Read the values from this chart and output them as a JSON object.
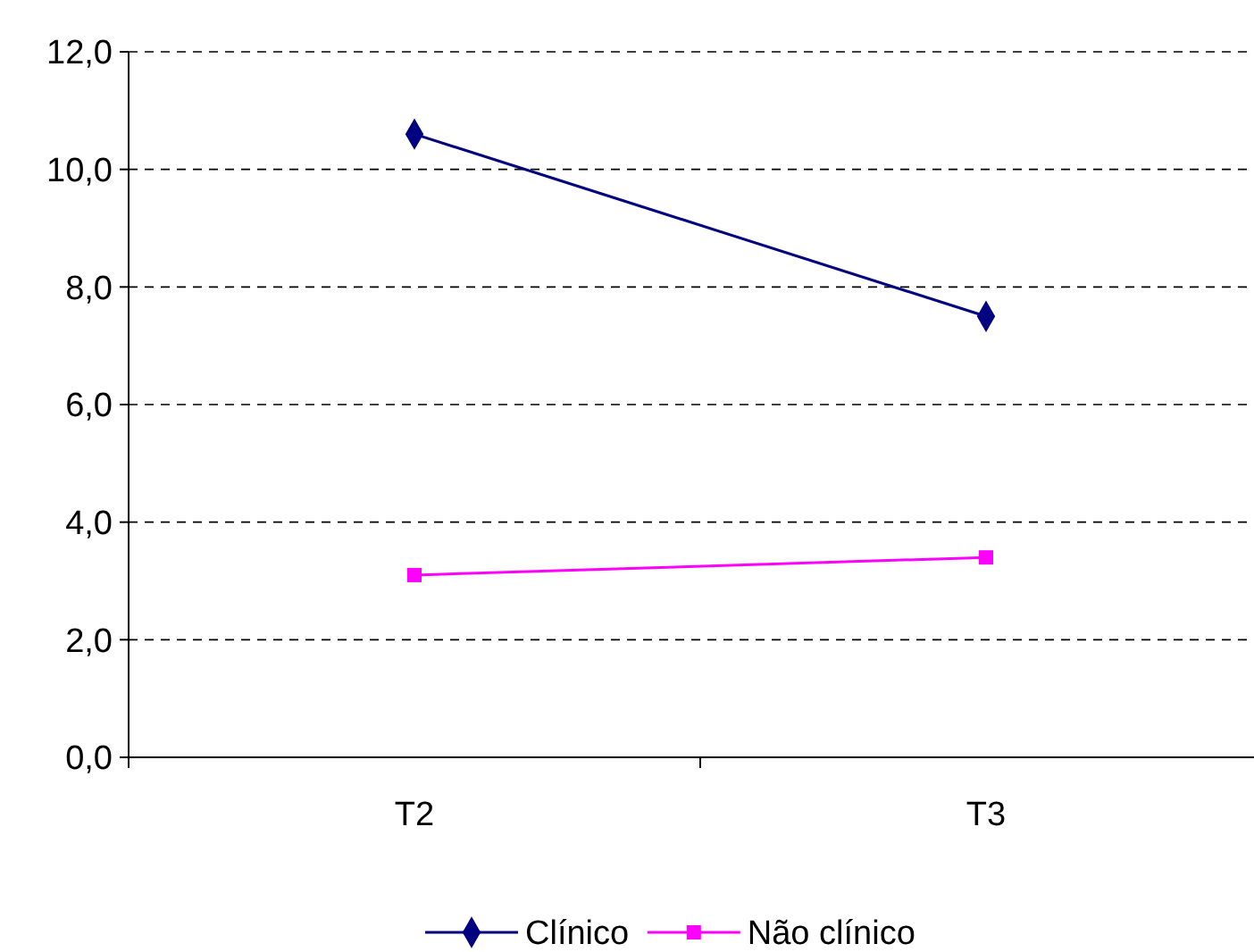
{
  "chart_data": {
    "type": "line",
    "categories": [
      "T2",
      "T3"
    ],
    "series": [
      {
        "name": "Clínico",
        "color": "#000080",
        "values": [
          10.6,
          7.5
        ],
        "marker": "diamond"
      },
      {
        "name": "Não clínico",
        "color": "#ff00ff",
        "values": [
          3.1,
          3.4
        ],
        "marker": "square"
      }
    ],
    "ylim": [
      0,
      12
    ],
    "yticks": [
      {
        "value": 0,
        "label": "0,0"
      },
      {
        "value": 2,
        "label": "2,0"
      },
      {
        "value": 4,
        "label": "4,0"
      },
      {
        "value": 6,
        "label": "6,0"
      },
      {
        "value": 8,
        "label": "8,0"
      },
      {
        "value": 10,
        "label": "10,0"
      },
      {
        "value": 12,
        "label": "12,0"
      }
    ],
    "grid": "y",
    "legend": "bottom",
    "line_style": "solid"
  }
}
